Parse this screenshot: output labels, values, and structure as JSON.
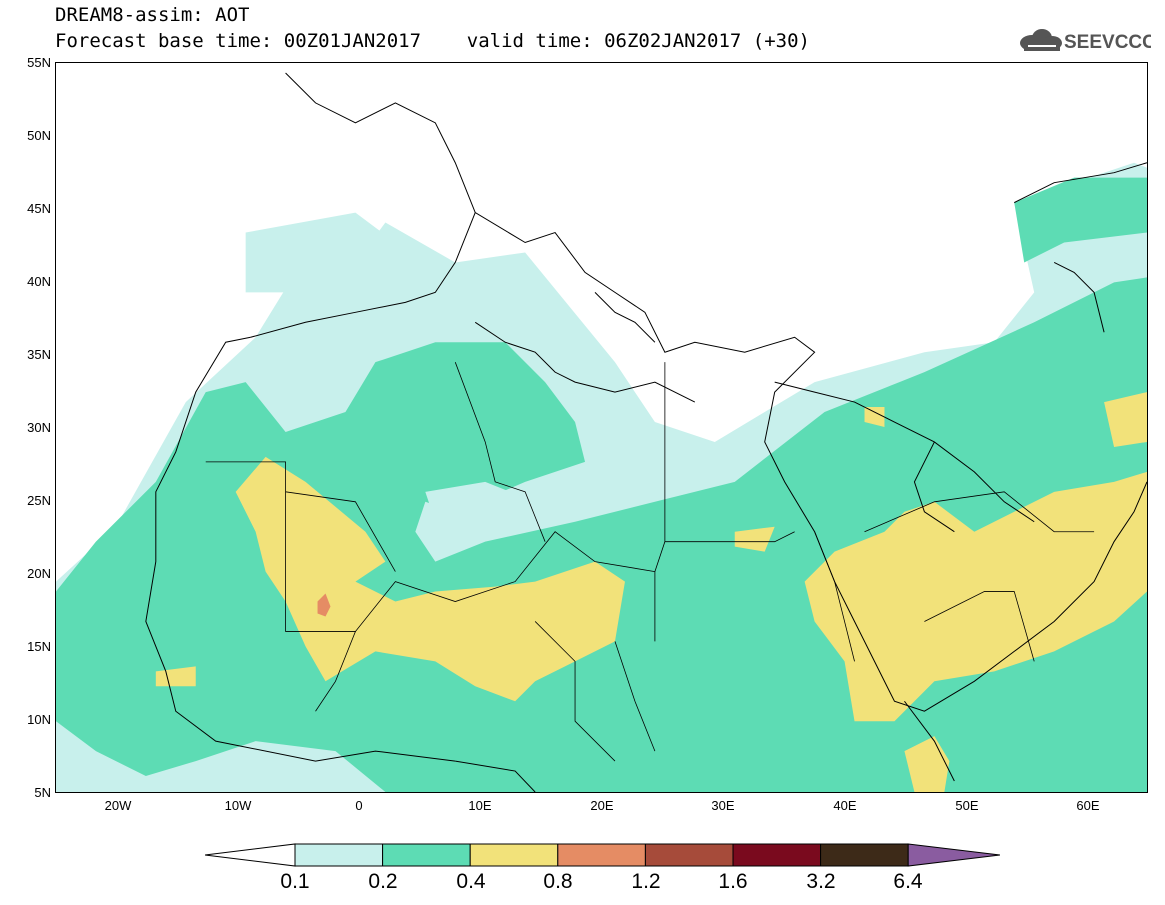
{
  "header": {
    "title": "DREAM8-assim: AOT",
    "subtitle": "Forecast base time: 00Z01JAN2017    valid time: 06Z02JAN2017 (+30)",
    "logo_text": "SEEVCCC"
  },
  "map": {
    "projection": "lat-lon",
    "lon_range": [
      -25,
      65
    ],
    "lat_range": [
      5,
      55
    ],
    "lat_labels": [
      "55N",
      "50N",
      "45N",
      "40N",
      "35N",
      "30N",
      "25N",
      "20N",
      "15N",
      "10N",
      "5N"
    ],
    "lon_labels": [
      "20W",
      "10W",
      "0",
      "10E",
      "20E",
      "30E",
      "40E",
      "50E",
      "60E"
    ],
    "field": "Aerosol optical thickness (dust)"
  },
  "colorbar": {
    "labels": [
      "0.1",
      "0.2",
      "0.4",
      "0.8",
      "1.2",
      "1.6",
      "3.2",
      "6.4"
    ],
    "colors": [
      "#c8f0ec",
      "#5ddcb4",
      "#f2e27a",
      "#e58c64",
      "#a64b3a",
      "#7a0a1e",
      "#3d2a18",
      "#8a5ca0"
    ],
    "below_color": "#ffffff",
    "above_color": "#8a5ca0"
  }
}
